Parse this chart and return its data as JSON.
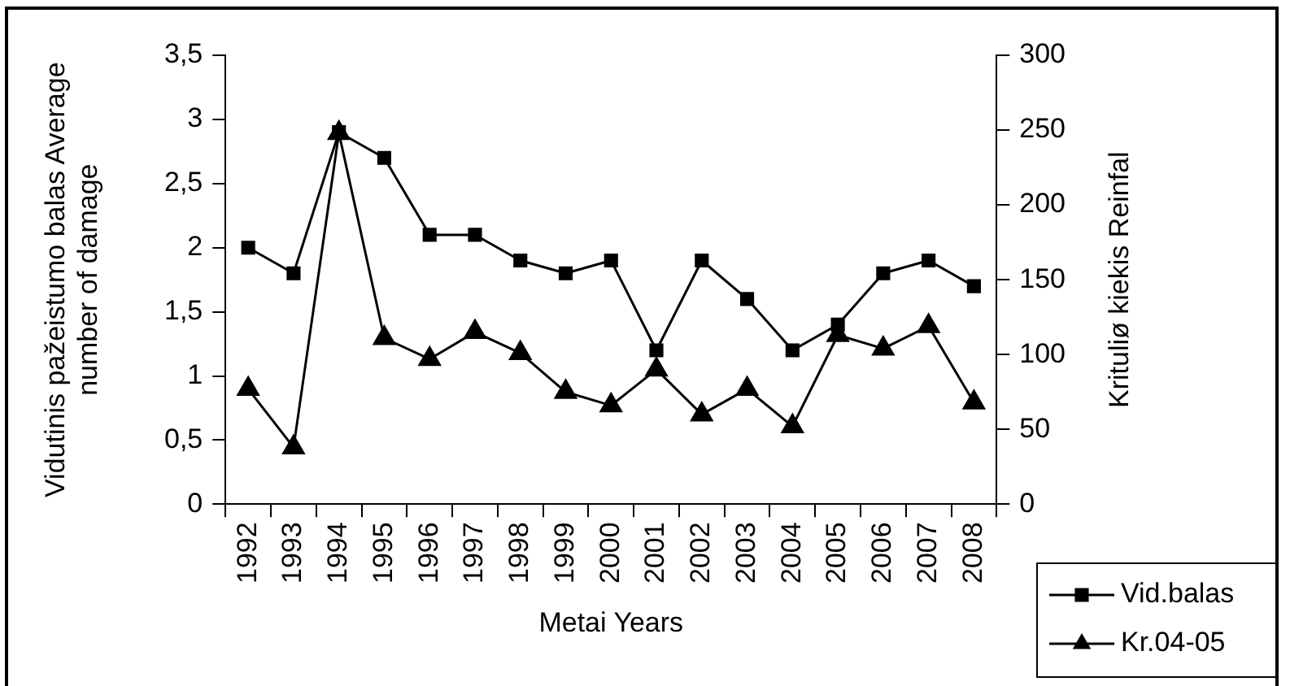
{
  "chart_data": {
    "type": "line",
    "xlabel": "Metai Years",
    "ylabel": "Vidutinis pažeistumo balas Average number of damage",
    "y2label": "Krituliø kiekis Reinfal",
    "categories": [
      "1992",
      "1993",
      "1994",
      "1995",
      "1996",
      "1997",
      "1998",
      "1999",
      "2000",
      "2001",
      "2002",
      "2003",
      "2004",
      "2005",
      "2006",
      "2007",
      "2008"
    ],
    "series": [
      {
        "name": "Vid.balas",
        "color": "#000000",
        "marker": "square",
        "values": [
          2.0,
          1.8,
          2.9,
          2.7,
          2.1,
          2.1,
          1.9,
          1.8,
          1.9,
          1.2,
          1.9,
          1.6,
          1.2,
          1.4,
          1.8,
          1.9,
          1.7
        ]
      },
      {
        "name": "Kr.04-05",
        "color": "#000000",
        "marker": "triangle",
        "axis": "y2",
        "values": [
          77,
          38,
          248,
          111,
          97,
          115,
          101,
          75,
          66,
          90,
          60,
          77,
          52,
          113,
          104,
          119,
          68
        ]
      }
    ],
    "ylim": [
      0,
      3.5
    ],
    "yticks": [
      0,
      {
        "value": 0.5,
        "label": "0,5"
      },
      1,
      {
        "value": 1.5,
        "label": "1,5"
      },
      2,
      {
        "value": 2.5,
        "label": "2,5"
      },
      3,
      {
        "value": 3.5,
        "label": "3,5"
      }
    ],
    "y2lim": [
      0,
      300
    ],
    "y2ticks": [
      0,
      50,
      100,
      150,
      200,
      250,
      300
    ],
    "grid": false,
    "legend": "bottom right",
    "line_style": "solid"
  }
}
